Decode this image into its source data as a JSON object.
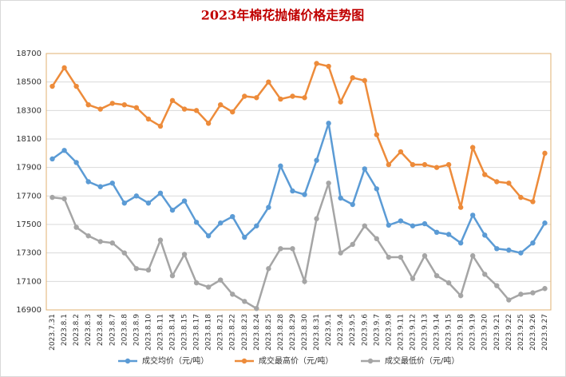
{
  "chart_data": {
    "type": "line",
    "title": "2023年棉花抛储价格走势图",
    "categories": [
      "2023.7.31",
      "2023.8.1",
      "2023.8.2",
      "2023.8.3",
      "2023.8.4",
      "2023.8.7",
      "2023.8.8",
      "2023.8.9",
      "2023.8.10",
      "2023.8.11",
      "2023.8.14",
      "2023.8.15",
      "2023.8.17",
      "2023.8.18",
      "2023.8.21",
      "2023.8.22",
      "2023.8.23",
      "2023.8.24",
      "2023.8.25",
      "2023.8.28",
      "2023.8.29",
      "2023.8.30",
      "2023.8.31",
      "2023.9.1",
      "2023.9.4",
      "2023.9.5",
      "2023.9.6",
      "2023.9.7",
      "2023.9.8",
      "2023.9.11",
      "2023.9.12",
      "2023.9.13",
      "2023.9.14",
      "2023.9.15",
      "2023.9.18",
      "2023.9.19",
      "2023.9.20",
      "2023.9.21",
      "2023.9.22",
      "2023.9.25",
      "2023.9.26",
      "2023.9.27"
    ],
    "series": [
      {
        "name": "成交均价（元/吨）",
        "color": "#5b9bd5",
        "values": [
          17960,
          18020,
          17935,
          17800,
          17765,
          17790,
          17650,
          17700,
          17650,
          17720,
          17600,
          17665,
          17515,
          17420,
          17510,
          17555,
          17410,
          17490,
          17620,
          17910,
          17735,
          17710,
          17950,
          18210,
          17685,
          17640,
          17890,
          17750,
          17495,
          17525,
          17490,
          17505,
          17445,
          17430,
          17370,
          17565,
          17425,
          17330,
          17320,
          17300,
          17370,
          17510
        ]
      },
      {
        "name": "成交最高价（元/吨）",
        "color": "#ed8b3a",
        "values": [
          18470,
          18600,
          18470,
          18340,
          18310,
          18350,
          18340,
          18320,
          18240,
          18190,
          18370,
          18310,
          18300,
          18210,
          18340,
          18290,
          18400,
          18390,
          18500,
          18380,
          18400,
          18390,
          18630,
          18610,
          18360,
          18530,
          18510,
          18130,
          17920,
          18010,
          17920,
          17920,
          17900,
          17920,
          17620,
          18040,
          17850,
          17800,
          17790,
          17690,
          17660,
          18000
        ]
      },
      {
        "name": "成交最低价（元/吨）",
        "color": "#a5a5a5",
        "values": [
          17690,
          17680,
          17480,
          17420,
          17380,
          17370,
          17300,
          17190,
          17180,
          17390,
          17140,
          17290,
          17090,
          17060,
          17110,
          17010,
          16960,
          16910,
          17190,
          17330,
          17330,
          17100,
          17540,
          17790,
          17300,
          17360,
          17490,
          17400,
          17270,
          17270,
          17120,
          17280,
          17140,
          17090,
          17000,
          17280,
          17150,
          17070,
          16970,
          17010,
          17020,
          17050
        ]
      }
    ],
    "ylim": [
      16900,
      18700
    ],
    "yticks": [
      16900,
      17100,
      17300,
      17500,
      17700,
      17900,
      18100,
      18300,
      18500,
      18700
    ],
    "grid": true,
    "legend": "bottom"
  }
}
